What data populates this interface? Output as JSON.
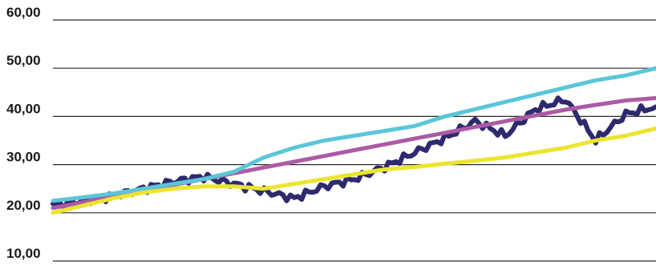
{
  "chart_data": {
    "type": "line",
    "title": "",
    "xlabel": "",
    "ylabel": "",
    "ylim": [
      10,
      60
    ],
    "yticks": [
      10,
      20,
      30,
      40,
      50,
      60
    ],
    "ytick_labels": [
      "10,00",
      "20,00",
      "30,00",
      "40,00",
      "50,00",
      "60,00"
    ],
    "grid": true,
    "legend": "none",
    "x": [
      0,
      5,
      10,
      15,
      20,
      25,
      30,
      35,
      40,
      45,
      50,
      55,
      60,
      65,
      70,
      75,
      80,
      85,
      90,
      95,
      100
    ],
    "series": [
      {
        "color": "#2e2a6e",
        "values": [
          21.5,
          22.5,
          23.5,
          25.0,
          26.5,
          27.5,
          26.0,
          24.5,
          23.0,
          25.5,
          27.0,
          29.5,
          32.5,
          35.5,
          39.0,
          36.0,
          41.5,
          43.5,
          35.0,
          40.5,
          42.0
        ]
      },
      {
        "color": "#ab5ba5",
        "values": [
          21.0,
          22.2,
          23.4,
          24.6,
          25.8,
          27.0,
          28.2,
          29.4,
          30.6,
          31.8,
          33.0,
          34.2,
          35.4,
          36.6,
          37.8,
          39.0,
          40.2,
          41.4,
          42.4,
          43.3,
          43.8
        ]
      },
      {
        "color": "#5ac6d9",
        "values": [
          22.5,
          23.2,
          24.0,
          25.0,
          26.0,
          27.0,
          28.5,
          31.5,
          33.5,
          35.0,
          36.0,
          37.0,
          38.0,
          40.0,
          41.5,
          43.0,
          44.5,
          46.0,
          47.5,
          48.5,
          50.0
        ]
      },
      {
        "color": "#ebe52e",
        "values": [
          20.0,
          21.5,
          23.0,
          24.2,
          25.0,
          25.5,
          25.5,
          25.0,
          26.0,
          27.0,
          28.0,
          29.0,
          29.5,
          30.2,
          30.8,
          31.5,
          32.5,
          33.5,
          35.0,
          36.0,
          37.5
        ]
      }
    ]
  }
}
